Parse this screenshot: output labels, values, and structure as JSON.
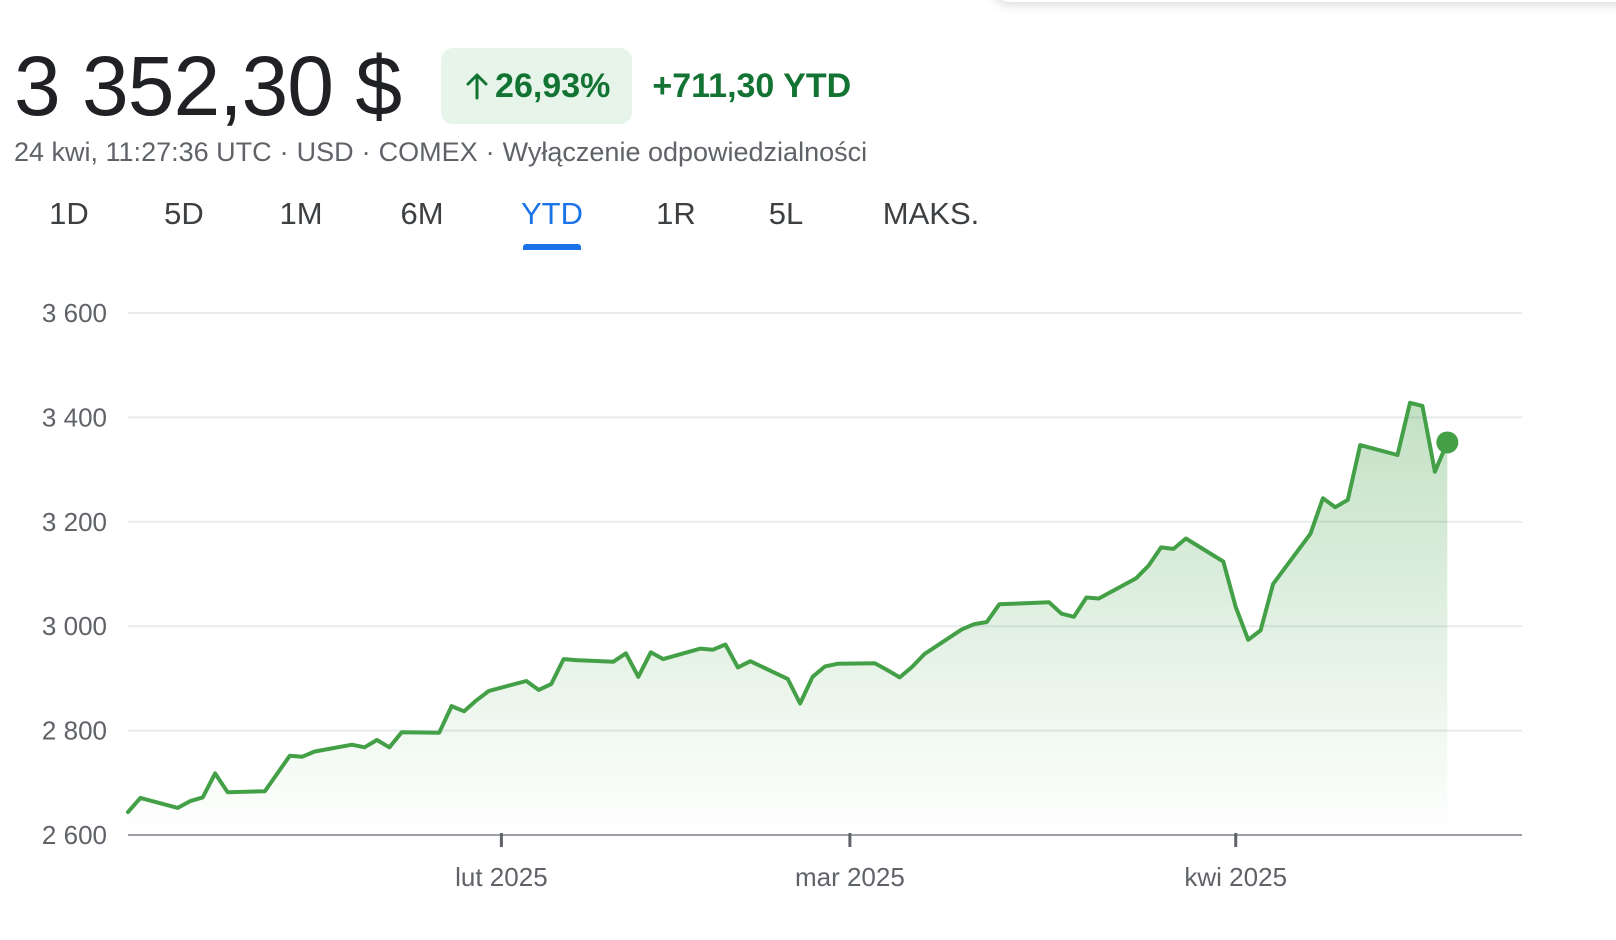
{
  "quote": {
    "price": "3 352,30 $",
    "change_percent": "26,93%",
    "change_abs": "+711,30 YTD",
    "timestamp": "24 kwi, 11:27:36 UTC",
    "currency": "USD",
    "exchange": "COMEX",
    "disclaimer": "Wyłączenie odpowiedzialności",
    "separator": "·",
    "change_icon": "arrow-up-icon"
  },
  "tabs": [
    {
      "label": "1D",
      "active": false
    },
    {
      "label": "5D",
      "active": false
    },
    {
      "label": "1M",
      "active": false
    },
    {
      "label": "6M",
      "active": false
    },
    {
      "label": "YTD",
      "active": true
    },
    {
      "label": "1R",
      "active": false
    },
    {
      "label": "5L",
      "active": false
    },
    {
      "label": "MAKS.",
      "active": false
    }
  ],
  "colors": {
    "line": "#43a047",
    "positive": "#137333",
    "badge_bg": "#e6f4ea",
    "accent": "#1a73e8"
  },
  "chart_data": {
    "type": "area",
    "title": "",
    "xlabel": "",
    "ylabel": "",
    "ylim": [
      2600,
      3600
    ],
    "yticks": [
      3600,
      3400,
      3200,
      3000,
      2800,
      2600
    ],
    "ytick_labels": [
      "3 600",
      "3 400",
      "3 200",
      "3 000",
      "2 800",
      "2 600"
    ],
    "xlim": [
      "2025-01-02",
      "2025-04-24"
    ],
    "xticks": [
      {
        "date": "2025-02-01",
        "label": "lut 2025"
      },
      {
        "date": "2025-03-01",
        "label": "mar 2025"
      },
      {
        "date": "2025-04-01",
        "label": "kwi 2025"
      }
    ],
    "grid": true,
    "series": [
      {
        "points": [
          [
            "2025-01-02",
            2644
          ],
          [
            "2025-01-03",
            2671
          ],
          [
            "2025-01-06",
            2652
          ],
          [
            "2025-01-07",
            2665
          ],
          [
            "2025-01-08",
            2672
          ],
          [
            "2025-01-09",
            2718
          ],
          [
            "2025-01-10",
            2682
          ],
          [
            "2025-01-13",
            2684
          ],
          [
            "2025-01-14",
            2718
          ],
          [
            "2025-01-15",
            2752
          ],
          [
            "2025-01-16",
            2750
          ],
          [
            "2025-01-17",
            2760
          ],
          [
            "2025-01-20",
            2773
          ],
          [
            "2025-01-21",
            2768
          ],
          [
            "2025-01-22",
            2782
          ],
          [
            "2025-01-23",
            2768
          ],
          [
            "2025-01-24",
            2797
          ],
          [
            "2025-01-27",
            2796
          ],
          [
            "2025-01-28",
            2847
          ],
          [
            "2025-01-29",
            2837
          ],
          [
            "2025-01-30",
            2858
          ],
          [
            "2025-01-31",
            2876
          ],
          [
            "2025-02-03",
            2895
          ],
          [
            "2025-02-04",
            2878
          ],
          [
            "2025-02-05",
            2889
          ],
          [
            "2025-02-06",
            2937
          ],
          [
            "2025-02-07",
            2935
          ],
          [
            "2025-02-10",
            2932
          ],
          [
            "2025-02-11",
            2948
          ],
          [
            "2025-02-12",
            2903
          ],
          [
            "2025-02-13",
            2950
          ],
          [
            "2025-02-14",
            2937
          ],
          [
            "2025-02-17",
            2957
          ],
          [
            "2025-02-18",
            2955
          ],
          [
            "2025-02-19",
            2965
          ],
          [
            "2025-02-20",
            2921
          ],
          [
            "2025-02-21",
            2933
          ],
          [
            "2025-02-24",
            2899
          ],
          [
            "2025-02-25",
            2852
          ],
          [
            "2025-02-26",
            2903
          ],
          [
            "2025-02-27",
            2923
          ],
          [
            "2025-02-28",
            2928
          ],
          [
            "2025-03-03",
            2929
          ],
          [
            "2025-03-04",
            2916
          ],
          [
            "2025-03-05",
            2902
          ],
          [
            "2025-03-06",
            2922
          ],
          [
            "2025-03-07",
            2947
          ],
          [
            "2025-03-10",
            2994
          ],
          [
            "2025-03-11",
            3004
          ],
          [
            "2025-03-12",
            3008
          ],
          [
            "2025-03-13",
            3042
          ],
          [
            "2025-03-14",
            3043
          ],
          [
            "2025-03-17",
            3046
          ],
          [
            "2025-03-18",
            3024
          ],
          [
            "2025-03-19",
            3018
          ],
          [
            "2025-03-20",
            3055
          ],
          [
            "2025-03-21",
            3053
          ],
          [
            "2025-03-24",
            3092
          ],
          [
            "2025-03-25",
            3116
          ],
          [
            "2025-03-26",
            3151
          ],
          [
            "2025-03-27",
            3148
          ],
          [
            "2025-03-28",
            3168
          ],
          [
            "2025-03-31",
            3124
          ],
          [
            "2025-04-01",
            3037
          ],
          [
            "2025-04-02",
            2974
          ],
          [
            "2025-04-03",
            2992
          ],
          [
            "2025-04-04",
            3081
          ],
          [
            "2025-04-07",
            3177
          ],
          [
            "2025-04-08",
            3245
          ],
          [
            "2025-04-09",
            3228
          ],
          [
            "2025-04-10",
            3242
          ],
          [
            "2025-04-11",
            3347
          ],
          [
            "2025-04-14",
            3328
          ],
          [
            "2025-04-15",
            3428
          ],
          [
            "2025-04-16",
            3422
          ],
          [
            "2025-04-17",
            3296
          ],
          [
            "2025-04-18",
            3352
          ]
        ]
      }
    ]
  }
}
